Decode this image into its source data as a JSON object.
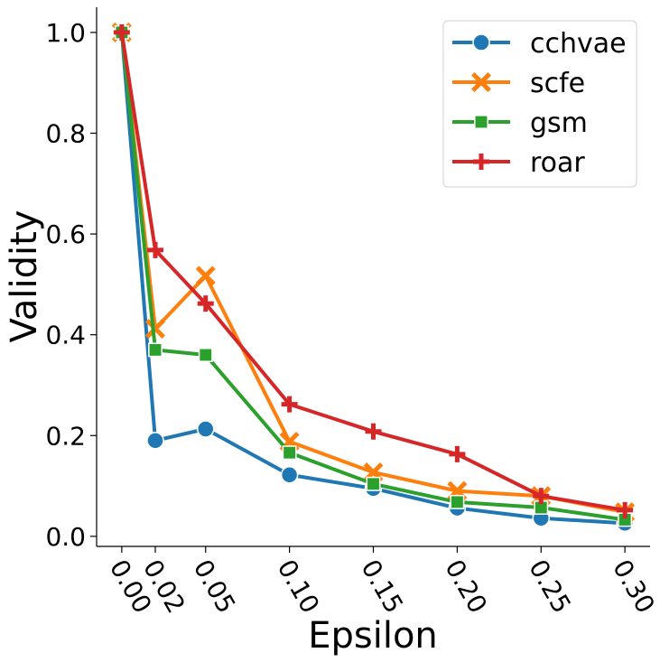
{
  "chart_data": {
    "type": "line",
    "title": "",
    "xlabel": "Epsilon",
    "ylabel": "Validity",
    "x": [
      0.0,
      0.02,
      0.05,
      0.1,
      0.15,
      0.2,
      0.25,
      0.3
    ],
    "x_tick_values": [
      0.0,
      0.02,
      0.05,
      0.1,
      0.15,
      0.2,
      0.25,
      0.3
    ],
    "x_tick_labels": [
      "0.00",
      "0.02",
      "0.05",
      "0.10",
      "0.15",
      "0.20",
      "0.25",
      "0.30"
    ],
    "y_tick_values": [
      0.0,
      0.2,
      0.4,
      0.6,
      0.8,
      1.0
    ],
    "y_tick_labels": [
      "0.0",
      "0.2",
      "0.4",
      "0.6",
      "0.8",
      "1.0"
    ],
    "xlim": [
      -0.015,
      0.315
    ],
    "ylim": [
      -0.02,
      1.05
    ],
    "grid": false,
    "legend_position": "top-right",
    "series": [
      {
        "name": "cchvae",
        "color": "#1f77b4",
        "marker": "circle",
        "values": [
          1.0,
          0.19,
          0.213,
          0.122,
          0.095,
          0.056,
          0.036,
          0.026
        ]
      },
      {
        "name": "scfe",
        "color": "#ff7f0e",
        "marker": "x",
        "values": [
          1.0,
          0.412,
          0.517,
          0.188,
          0.127,
          0.09,
          0.08,
          0.048
        ]
      },
      {
        "name": "gsm",
        "color": "#2ca02c",
        "marker": "square",
        "values": [
          1.0,
          0.37,
          0.36,
          0.166,
          0.104,
          0.068,
          0.057,
          0.033
        ]
      },
      {
        "name": "roar",
        "color": "#d62728",
        "marker": "plus",
        "values": [
          1.0,
          0.568,
          0.462,
          0.262,
          0.208,
          0.163,
          0.08,
          0.052
        ]
      }
    ]
  }
}
